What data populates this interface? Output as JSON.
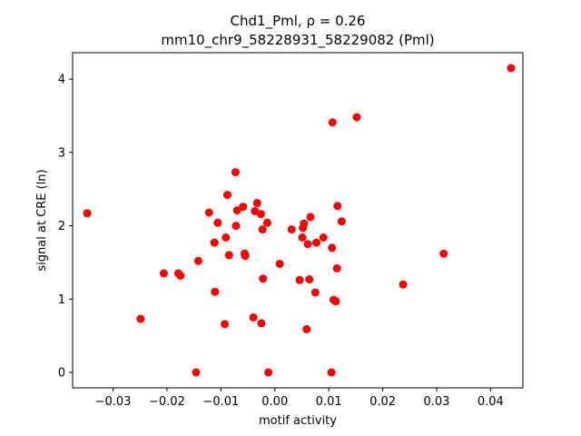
{
  "chart_data": {
    "type": "scatter",
    "title_line1": "Chd1_Pml, ρ = 0.26",
    "title_line2": "mm10_chr9_58228931_58229082 (Pml)",
    "xlabel": "motif activity",
    "ylabel": "signal at CRE (ln)",
    "xlim": [
      -0.0375,
      0.046
    ],
    "ylim": [
      -0.21,
      4.36
    ],
    "xticks": [
      {
        "value": -0.03,
        "label": "−0.03"
      },
      {
        "value": -0.02,
        "label": "−0.02"
      },
      {
        "value": -0.01,
        "label": "−0.01"
      },
      {
        "value": 0.0,
        "label": "0.00"
      },
      {
        "value": 0.01,
        "label": "0.01"
      },
      {
        "value": 0.02,
        "label": "0.02"
      },
      {
        "value": 0.03,
        "label": "0.03"
      },
      {
        "value": 0.04,
        "label": "0.04"
      }
    ],
    "yticks": [
      {
        "value": 0,
        "label": "0"
      },
      {
        "value": 1,
        "label": "1"
      },
      {
        "value": 2,
        "label": "2"
      },
      {
        "value": 3,
        "label": "3"
      },
      {
        "value": 4,
        "label": "4"
      }
    ],
    "grid": false,
    "marker_color": "#ff0000",
    "points": [
      {
        "x": -0.0348,
        "y": 2.17
      },
      {
        "x": -0.0249,
        "y": 0.73
      },
      {
        "x": -0.0206,
        "y": 1.35
      },
      {
        "x": -0.0179,
        "y": 1.35
      },
      {
        "x": -0.0175,
        "y": 1.32
      },
      {
        "x": -0.0146,
        "y": 0.0
      },
      {
        "x": -0.0142,
        "y": 1.52
      },
      {
        "x": -0.0122,
        "y": 2.18
      },
      {
        "x": -0.0112,
        "y": 1.77
      },
      {
        "x": -0.0111,
        "y": 1.1
      },
      {
        "x": -0.0106,
        "y": 2.04
      },
      {
        "x": -0.0093,
        "y": 0.66
      },
      {
        "x": -0.0091,
        "y": 1.84
      },
      {
        "x": -0.0088,
        "y": 2.42
      },
      {
        "x": -0.0085,
        "y": 1.6
      },
      {
        "x": -0.0073,
        "y": 2.73
      },
      {
        "x": -0.0072,
        "y": 2.0
      },
      {
        "x": -0.007,
        "y": 2.21
      },
      {
        "x": -0.0059,
        "y": 2.26
      },
      {
        "x": -0.0056,
        "y": 1.62
      },
      {
        "x": -0.0055,
        "y": 1.59
      },
      {
        "x": -0.004,
        "y": 0.75
      },
      {
        "x": -0.0037,
        "y": 2.2
      },
      {
        "x": -0.0033,
        "y": 2.31
      },
      {
        "x": -0.0026,
        "y": 2.16
      },
      {
        "x": -0.0025,
        "y": 0.67
      },
      {
        "x": -0.0023,
        "y": 1.95
      },
      {
        "x": -0.0022,
        "y": 1.28
      },
      {
        "x": -0.0014,
        "y": 2.04
      },
      {
        "x": -0.0012,
        "y": 0.0
      },
      {
        "x": 0.0009,
        "y": 1.48
      },
      {
        "x": 0.0031,
        "y": 1.95
      },
      {
        "x": 0.0046,
        "y": 1.26
      },
      {
        "x": 0.0051,
        "y": 1.84
      },
      {
        "x": 0.0052,
        "y": 1.97
      },
      {
        "x": 0.0054,
        "y": 2.03
      },
      {
        "x": 0.0059,
        "y": 0.59
      },
      {
        "x": 0.0061,
        "y": 1.75
      },
      {
        "x": 0.0064,
        "y": 1.27
      },
      {
        "x": 0.0066,
        "y": 2.12
      },
      {
        "x": 0.0075,
        "y": 1.09
      },
      {
        "x": 0.0077,
        "y": 1.77
      },
      {
        "x": 0.009,
        "y": 1.84
      },
      {
        "x": 0.0105,
        "y": 0.0
      },
      {
        "x": 0.0106,
        "y": 1.7
      },
      {
        "x": 0.0107,
        "y": 3.41
      },
      {
        "x": 0.0109,
        "y": 0.99
      },
      {
        "x": 0.0113,
        "y": 0.97
      },
      {
        "x": 0.0115,
        "y": 1.42
      },
      {
        "x": 0.0116,
        "y": 2.27
      },
      {
        "x": 0.0124,
        "y": 2.06
      },
      {
        "x": 0.0152,
        "y": 3.48
      },
      {
        "x": 0.0238,
        "y": 1.2
      },
      {
        "x": 0.0313,
        "y": 1.62
      },
      {
        "x": 0.0438,
        "y": 4.15
      }
    ]
  }
}
